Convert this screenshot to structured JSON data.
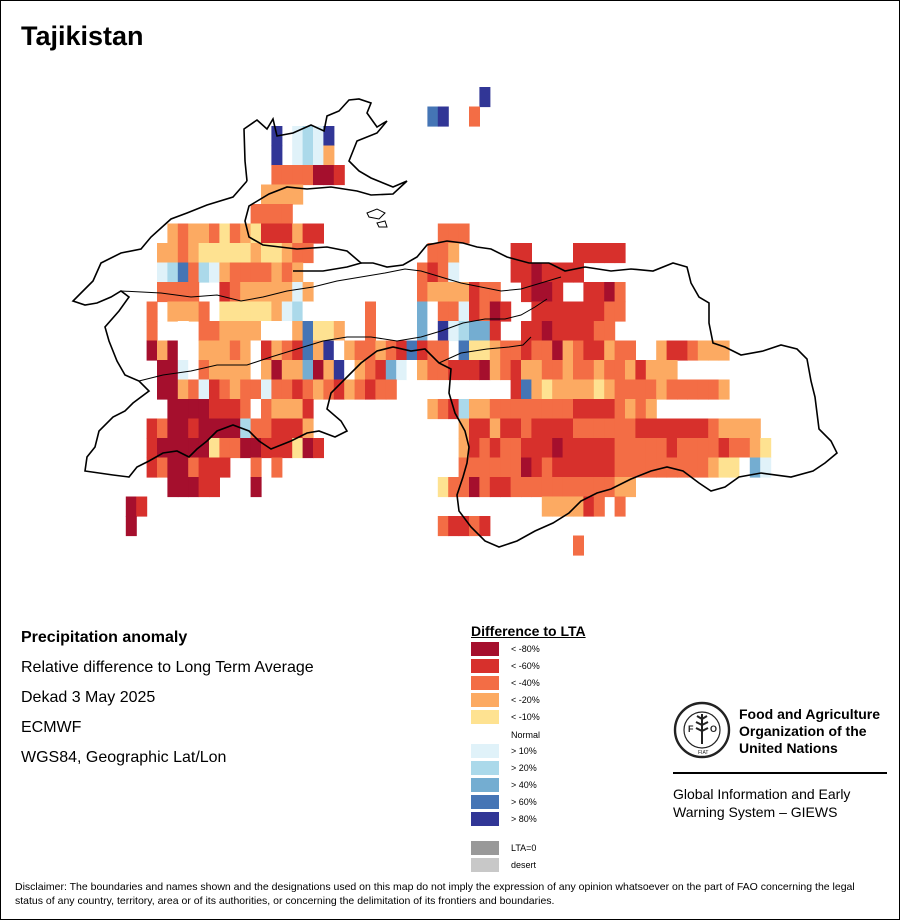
{
  "title": "Tajikistan",
  "info": {
    "title": "Precipitation anomaly",
    "subtitle": "Relative difference to Long Term Average",
    "date": "Dekad 3 May 2025",
    "source": "ECMWF",
    "projection": "WGS84, Geographic Lat/Lon"
  },
  "legend": {
    "title": "Difference to LTA",
    "items": [
      {
        "label": "< -80%",
        "color": "#a50f2d"
      },
      {
        "label": "< -60%",
        "color": "#d7302c"
      },
      {
        "label": "< -40%",
        "color": "#f36d45"
      },
      {
        "label": "< -20%",
        "color": "#fcaa62"
      },
      {
        "label": "< -10%",
        "color": "#fee291"
      },
      {
        "label": "Normal",
        "color": "#ffffff"
      },
      {
        "label": "> 10%",
        "color": "#e0f2f9"
      },
      {
        "label": "> 20%",
        "color": "#abd9ea"
      },
      {
        "label": "> 40%",
        "color": "#74add1"
      },
      {
        "label": "> 60%",
        "color": "#4575b5"
      },
      {
        "label": "> 80%",
        "color": "#313696"
      },
      {
        "label": "LTA=0",
        "color": "#999999"
      },
      {
        "label": "desert",
        "color": "#c8c8c8"
      }
    ]
  },
  "fao": {
    "name_line1": "Food and Agriculture",
    "name_line2": "Organization of the",
    "name_line3": "United Nations",
    "giews_line1": "Global Information and Early",
    "giews_line2": "Warning System – GIEWS",
    "emblem_motto": "FIAT PANIS",
    "emblem_letters": "FAO"
  },
  "disclaimer": "Disclaimer: The boundaries and names shown and the designations used on this map do not imply the expression of any opinion whatsoever on the part of FAO concerning the legal status of any country, territory, area or of its authorities, or concerning the delimitation of its frontiers and boundaries.",
  "map_grid": {
    "legend": {
      "a": "< -80%",
      "b": "< -60%",
      "c": "< -40%",
      "d": "< -20%",
      "e": "< -10%",
      "w": "Normal",
      "f": "> 10%",
      "g": "> 20%",
      "h": "> 40%",
      "i": "> 60%",
      "j": "> 80%"
    },
    "rows": [
      "..............................................j.....................................",
      ".........................................ij.wc.........................................",
      "..........................j.fgfj...........................................................",
      "..........................j.fgfd...........................................................",
      "..........................ccccaab..........................................................",
      ".........................dddd...........................................................",
      "........................cccc............................................................",
      "................dcddcecdebbbdbb...........ccc..........................................",
      "...............ddcdeeeeedeedcc...........ccd.....bb....bbbbb..............................",
      "...............fgicgfdccccdcd...........cbcf.....bbabbbb..................................",
      "...............cccc..bcdddddfd..........cddddbcc..baab..bbac..............................",
      "..............c.dddc.eeeeedfgw.....c....hwccfbcab..bbbbbbbcc.............................",
      "..............c..w.ccddddwwwdieed..c....hwjfghhb..bbabbbbcc..............................",
      "..............adaw.dddcdwbdcbidjwdccdcbibcc.ieedccbccadcbbdcc..dbbcddd.................",
      "...............aafwcddddwdaddhadjwdcbhfwdccbbbadcbddccdccdccdbddd..................",
      "...............aadcfbcdccfccbcdcbdcbcc...........bideddddedccccdcccccd..........",
      "................aaaabbbcwcdddb...........dcbgddccccccccbbbbcdcd.....................",
      "..............bcaabaaaagccbbbd..............dbbdbbcbbbbccccccbbbbbbbcdddd............",
      "..............baaaaaeccaabbbeab.............dbcbccbbbabbbbbcccccbccccbccde..........",
      "..............bcaacbbb..c.c.................ccccccabcbbbbbbcccccccccdeewhf..........",
      "................aaabb...a.................eccacbbccccccccccdd.....................",
      "............ab......................................ddddbc.c.............................",
      "............a.............................cbbcb............................",
      ".......................................................c..........................."
    ]
  }
}
